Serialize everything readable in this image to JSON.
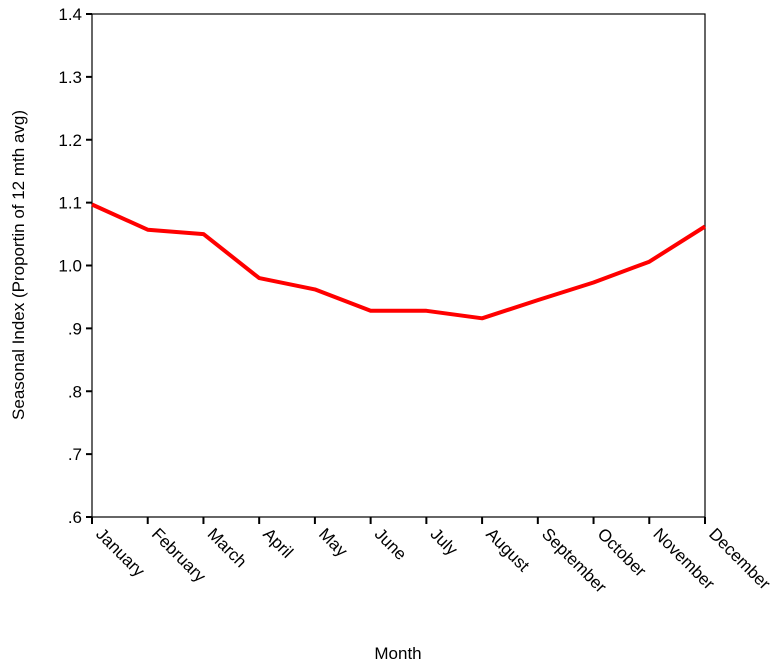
{
  "chart_data": {
    "type": "line",
    "xlabel": "Month",
    "ylabel": "Seasonal Index (Proportin of 12 mth avg)",
    "categories": [
      "January",
      "February",
      "March",
      "April",
      "May",
      "June",
      "July",
      "August",
      "September",
      "October",
      "November",
      "December"
    ],
    "series": [
      {
        "color": "#ff0000",
        "values": [
          1.097,
          1.057,
          1.05,
          0.98,
          0.962,
          0.928,
          0.928,
          0.916,
          0.945,
          0.973,
          1.006,
          1.062
        ]
      }
    ],
    "ylim": [
      0.6,
      1.4
    ],
    "yticks": [
      0.6,
      0.7,
      0.8,
      0.9,
      1.0,
      1.1,
      1.2,
      1.3,
      1.4
    ],
    "ytick_labels": [
      ".6",
      ".7",
      ".8",
      ".9",
      "1.0",
      "1.1",
      "1.2",
      "1.3",
      "1.4"
    ],
    "grid": false,
    "legend": "none"
  }
}
